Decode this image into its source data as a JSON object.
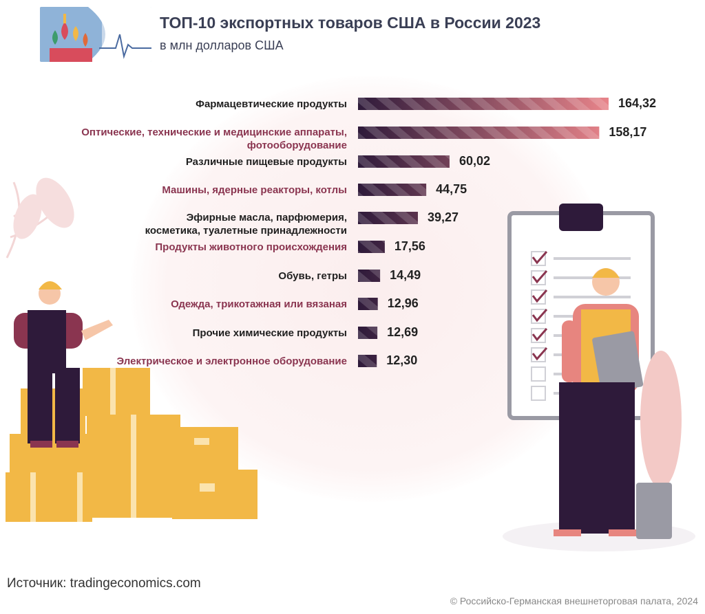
{
  "header": {
    "title": "ТОП-10 экспортных товаров США в России 2023",
    "subtitle": "в млн долларов США"
  },
  "colors": {
    "bar_dark": "#2e1a3a",
    "bar_light": "#e8848a",
    "label_dark": "#1f1f1f",
    "label_accent": "#8a3550",
    "box": "#f2b846",
    "worker_vest": "#f2b846"
  },
  "chart_data": {
    "type": "bar",
    "orientation": "horizontal",
    "title": "ТОП-10 экспортных товаров США в России 2023",
    "subtitle": "в млн долларов США",
    "categories": [
      "Фармацевтические продукты",
      "Оптические, технические и медицинские аппараты,\nфотооборудование",
      "Различные пищевые продукты",
      "Машины, ядерные реакторы, котлы",
      "Эфирные масла, парфюмерия,\nкосметика, туалетные принадлежности",
      "Продукты животного происхождения",
      "Обувь, гетры",
      "Одежда, трикотажная или вязаная",
      "Прочие химические продукты",
      "Электрическое и электронное оборудование"
    ],
    "values": [
      164.32,
      158.17,
      60.02,
      44.75,
      39.27,
      17.56,
      14.49,
      12.96,
      12.69,
      12.3
    ],
    "value_labels": [
      "164,32",
      "158,17",
      "60,02",
      "44,75",
      "39,27",
      "17,56",
      "14,49",
      "12,96",
      "12,69",
      "12,30"
    ],
    "label_styles": [
      "dark",
      "accent",
      "dark",
      "accent",
      "dark",
      "accent",
      "dark",
      "accent",
      "dark",
      "accent"
    ],
    "xlim": [
      0,
      164.32
    ],
    "grid": false
  },
  "footer": {
    "source": "Источник: tradingeconomics.com",
    "copyright": "© Российско-Германская внешнеторговая палата, 2024"
  }
}
